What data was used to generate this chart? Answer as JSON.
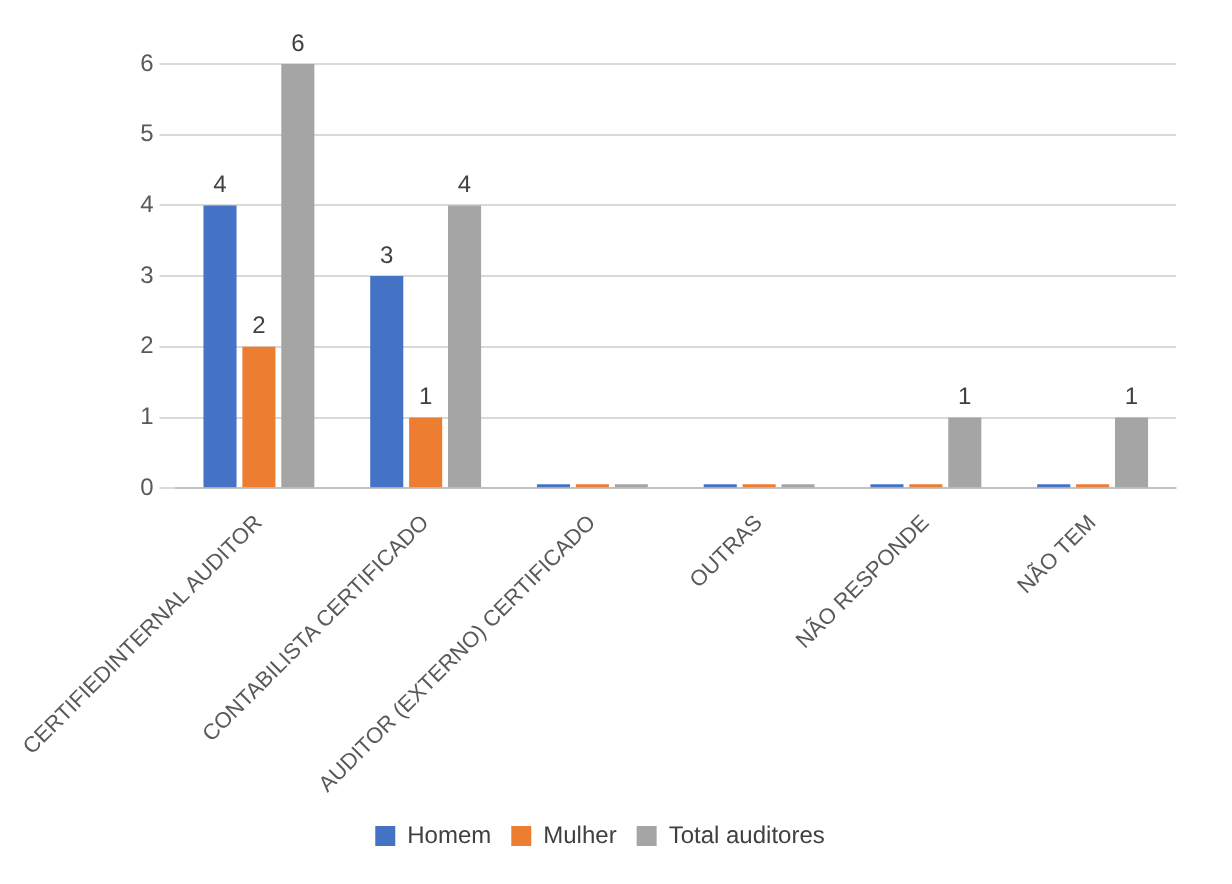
{
  "chart_data": {
    "type": "bar",
    "categories": [
      "CERTIFIEDINTERNAL AUDITOR",
      "CONTABILISTA CERTIFICADO",
      "AUDITOR (EXTERNO) CERTIFICADO",
      "OUTRAS",
      "NÃO RESPONDE",
      "NÃO TEM"
    ],
    "series": [
      {
        "name": "Homem",
        "color": "#4472c4",
        "values": [
          4,
          3,
          0,
          0,
          0,
          0
        ],
        "value_labels": [
          "4",
          "3",
          null,
          null,
          null,
          null
        ]
      },
      {
        "name": "Mulher",
        "color": "#ed7d31",
        "values": [
          2,
          1,
          0,
          0,
          0,
          0
        ],
        "value_labels": [
          "2",
          "1",
          null,
          null,
          null,
          null
        ]
      },
      {
        "name": "Total auditores",
        "color": "#a5a5a5",
        "values": [
          6,
          4,
          0,
          0,
          1,
          1
        ],
        "value_labels": [
          "6",
          "4",
          null,
          null,
          "1",
          "1"
        ]
      }
    ],
    "ylim": [
      0,
      6
    ],
    "yticks": [
      0,
      1,
      2,
      3,
      4,
      5,
      6
    ],
    "grid": "y",
    "legend": "bottom"
  }
}
